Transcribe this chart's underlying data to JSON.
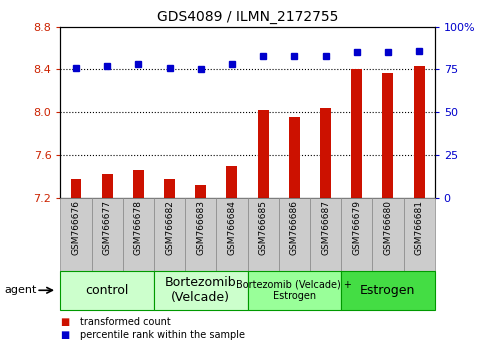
{
  "title": "GDS4089 / ILMN_2172755",
  "samples": [
    "GSM766676",
    "GSM766677",
    "GSM766678",
    "GSM766682",
    "GSM766683",
    "GSM766684",
    "GSM766685",
    "GSM766686",
    "GSM766687",
    "GSM766679",
    "GSM766680",
    "GSM766681"
  ],
  "bar_values": [
    7.38,
    7.43,
    7.46,
    7.38,
    7.32,
    7.5,
    8.02,
    7.96,
    8.04,
    8.4,
    8.37,
    8.43
  ],
  "dot_values": [
    76,
    77,
    78,
    76,
    75,
    78,
    83,
    83,
    83,
    85,
    85,
    86
  ],
  "bar_color": "#cc1100",
  "dot_color": "#0000cc",
  "ylim_left": [
    7.2,
    8.8
  ],
  "ylim_right": [
    0,
    100
  ],
  "yticks_left": [
    7.2,
    7.6,
    8.0,
    8.4,
    8.8
  ],
  "yticks_right": [
    0,
    25,
    50,
    75,
    100
  ],
  "ytick_labels_right": [
    "0",
    "25",
    "50",
    "75",
    "100%"
  ],
  "grid_values": [
    7.6,
    8.0,
    8.4
  ],
  "groups": [
    {
      "label": "control",
      "start": 0,
      "end": 3,
      "color": "#ccffcc"
    },
    {
      "label": "Bortezomib\n(Velcade)",
      "start": 3,
      "end": 6,
      "color": "#ccffcc"
    },
    {
      "label": "Bortezomib (Velcade) +\nEstrogen",
      "start": 6,
      "end": 9,
      "color": "#99ff99"
    },
    {
      "label": "Estrogen",
      "start": 9,
      "end": 12,
      "color": "#44dd44"
    }
  ],
  "agent_label": "agent",
  "legend_bar_label": "transformed count",
  "legend_dot_label": "percentile rank within the sample",
  "bar_width": 0.35,
  "background_color": "#ffffff",
  "tick_label_color_left": "#cc2200",
  "tick_label_color_right": "#0000cc",
  "group_box_colors": [
    "#ccffcc",
    "#ccffcc",
    "#99ff99",
    "#44dd44"
  ],
  "group_border_color": "#009900",
  "group_label_fontsizes": [
    9,
    9,
    7,
    9
  ],
  "sample_box_color": "#cccccc",
  "sample_box_edge": "#888888"
}
